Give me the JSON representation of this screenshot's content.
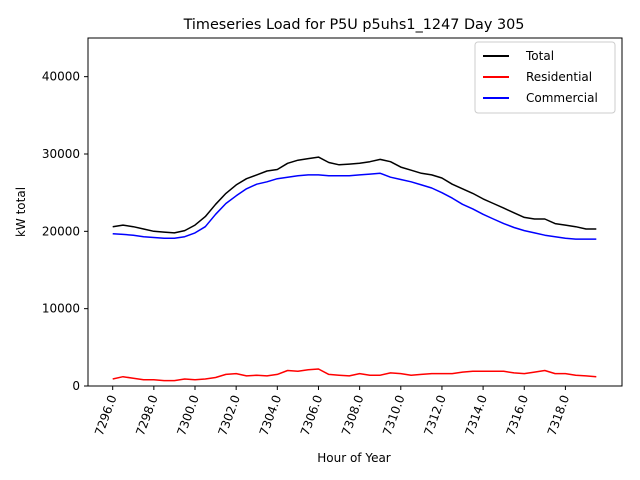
{
  "chart_data": {
    "type": "line",
    "title": "Timeseries Load for P5U p5uhs1_1247  Day 305",
    "xlabel": "Hour of Year",
    "ylabel": "kW total",
    "xlim": [
      7294.8,
      7320.75
    ],
    "ylim": [
      0,
      45000
    ],
    "x_ticks": [
      7296.0,
      7298.0,
      7300.0,
      7302.0,
      7304.0,
      7306.0,
      7308.0,
      7310.0,
      7312.0,
      7314.0,
      7316.0,
      7318.0
    ],
    "x_tick_labels": [
      "7296.0",
      "7298.0",
      "7300.0",
      "7302.0",
      "7304.0",
      "7306.0",
      "7308.0",
      "7310.0",
      "7312.0",
      "7314.0",
      "7316.0",
      "7318.0"
    ],
    "y_ticks": [
      0,
      10000,
      20000,
      30000,
      40000
    ],
    "y_tick_labels": [
      "0",
      "10000",
      "20000",
      "30000",
      "40000"
    ],
    "legend_position": "top-right",
    "series": [
      {
        "name": "Total",
        "color": "#000000",
        "x": [
          7296.0,
          7296.5,
          7297.0,
          7297.5,
          7298.0,
          7298.5,
          7299.0,
          7299.5,
          7300.0,
          7300.5,
          7301.0,
          7301.5,
          7302.0,
          7302.5,
          7303.0,
          7303.5,
          7304.0,
          7304.5,
          7305.0,
          7305.5,
          7306.0,
          7306.5,
          7307.0,
          7307.5,
          7308.0,
          7308.5,
          7309.0,
          7309.5,
          7310.0,
          7310.5,
          7311.0,
          7311.5,
          7312.0,
          7312.5,
          7313.0,
          7313.5,
          7314.0,
          7314.5,
          7315.0,
          7315.5,
          7316.0,
          7316.5,
          7317.0,
          7317.5,
          7318.0,
          7318.5,
          7319.0,
          7319.5
        ],
        "values": [
          20600,
          20800,
          20600,
          20300,
          20000,
          19900,
          19800,
          20100,
          20800,
          21900,
          23500,
          24900,
          26000,
          26800,
          27300,
          27800,
          28000,
          28800,
          29200,
          29400,
          29600,
          28900,
          28600,
          28700,
          28800,
          29000,
          29300,
          29000,
          28300,
          27900,
          27500,
          27300,
          26900,
          26100,
          25500,
          24900,
          24200,
          23600,
          23000,
          22400,
          21800,
          21600,
          21600,
          21000,
          20800,
          20600,
          20300,
          20300
        ]
      },
      {
        "name": "Residential",
        "color": "#ff0000",
        "x": [
          7296.0,
          7296.5,
          7297.0,
          7297.5,
          7298.0,
          7298.5,
          7299.0,
          7299.5,
          7300.0,
          7300.5,
          7301.0,
          7301.5,
          7302.0,
          7302.5,
          7303.0,
          7303.5,
          7304.0,
          7304.5,
          7305.0,
          7305.5,
          7306.0,
          7306.5,
          7307.0,
          7307.5,
          7308.0,
          7308.5,
          7309.0,
          7309.5,
          7310.0,
          7310.5,
          7311.0,
          7311.5,
          7312.0,
          7312.5,
          7313.0,
          7313.5,
          7314.0,
          7314.5,
          7315.0,
          7315.5,
          7316.0,
          7316.5,
          7317.0,
          7317.5,
          7318.0,
          7318.5,
          7319.0,
          7319.5
        ],
        "values": [
          900,
          1200,
          1000,
          800,
          800,
          700,
          700,
          900,
          800,
          900,
          1100,
          1500,
          1600,
          1300,
          1400,
          1300,
          1500,
          2000,
          1900,
          2100,
          2200,
          1500,
          1400,
          1300,
          1600,
          1400,
          1400,
          1700,
          1600,
          1400,
          1500,
          1600,
          1600,
          1600,
          1800,
          1900,
          1900,
          1900,
          1900,
          1700,
          1600,
          1800,
          2000,
          1600,
          1600,
          1400,
          1300,
          1200
        ]
      },
      {
        "name": "Commercial",
        "color": "#0000ff",
        "x": [
          7296.0,
          7296.5,
          7297.0,
          7297.5,
          7298.0,
          7298.5,
          7299.0,
          7299.5,
          7300.0,
          7300.5,
          7301.0,
          7301.5,
          7302.0,
          7302.5,
          7303.0,
          7303.5,
          7304.0,
          7304.5,
          7305.0,
          7305.5,
          7306.0,
          7306.5,
          7307.0,
          7307.5,
          7308.0,
          7308.5,
          7309.0,
          7309.5,
          7310.0,
          7310.5,
          7311.0,
          7311.5,
          7312.0,
          7312.5,
          7313.0,
          7313.5,
          7314.0,
          7314.5,
          7315.0,
          7315.5,
          7316.0,
          7316.5,
          7317.0,
          7317.5,
          7318.0,
          7318.5,
          7319.0,
          7319.5
        ],
        "values": [
          19700,
          19600,
          19500,
          19300,
          19200,
          19100,
          19100,
          19300,
          19800,
          20600,
          22200,
          23600,
          24600,
          25500,
          26100,
          26400,
          26800,
          27000,
          27200,
          27300,
          27300,
          27200,
          27200,
          27200,
          27300,
          27400,
          27500,
          27000,
          26700,
          26400,
          26000,
          25600,
          25000,
          24300,
          23500,
          22900,
          22200,
          21600,
          21000,
          20500,
          20100,
          19800,
          19500,
          19300,
          19100,
          19000,
          19000,
          19000
        ]
      }
    ]
  }
}
